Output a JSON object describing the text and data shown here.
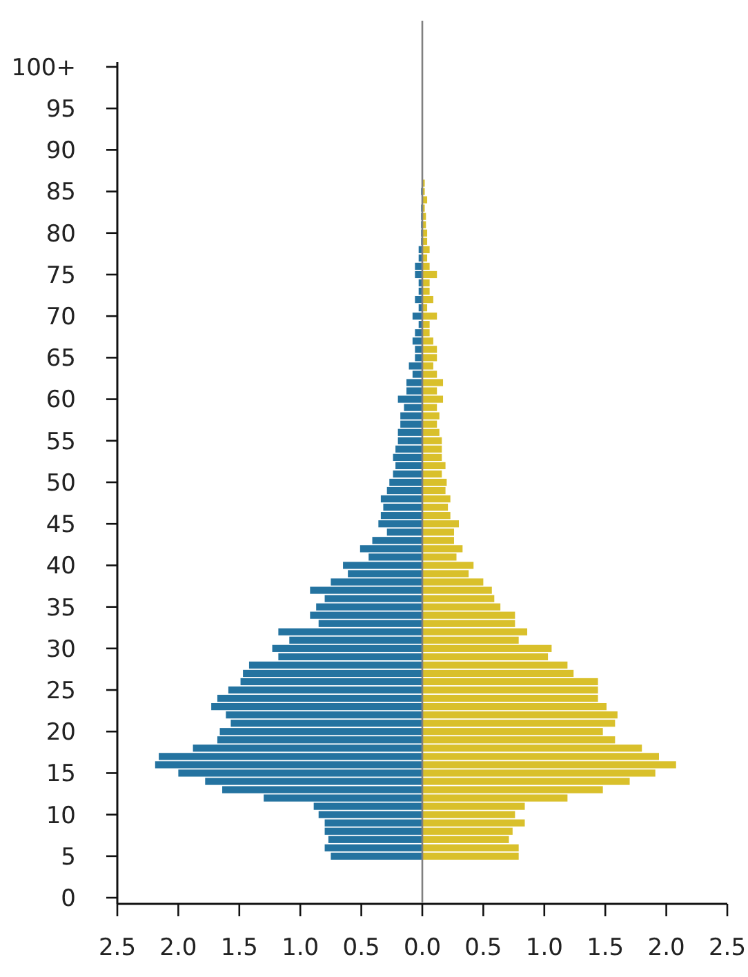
{
  "chart_data": {
    "type": "bar",
    "orientation": "horizontal",
    "categories": [
      "100+",
      null,
      null,
      null,
      null,
      "95",
      null,
      null,
      null,
      null,
      "90",
      null,
      null,
      null,
      null,
      "85",
      null,
      null,
      null,
      null,
      "80",
      null,
      null,
      null,
      null,
      "75",
      null,
      null,
      null,
      null,
      "70",
      null,
      null,
      null,
      null,
      "65",
      null,
      null,
      null,
      null,
      "60",
      null,
      null,
      null,
      null,
      "55",
      null,
      null,
      null,
      null,
      "50",
      null,
      null,
      null,
      null,
      "45",
      null,
      null,
      null,
      null,
      "40",
      null,
      null,
      null,
      null,
      "35",
      null,
      null,
      null,
      null,
      "30",
      null,
      null,
      null,
      null,
      "25",
      null,
      null,
      null,
      null,
      "20",
      null,
      null,
      null,
      null,
      "15",
      null,
      null,
      null,
      null,
      "10",
      null,
      null,
      null,
      null,
      "5",
      null,
      null,
      null,
      null,
      "0"
    ],
    "series": [
      {
        "color": "#2473a0",
        "values": [
          null,
          null,
          null,
          null,
          null,
          null,
          null,
          null,
          null,
          null,
          null,
          null,
          null,
          null,
          null,
          -0.01,
          null,
          -0.01,
          -0.01,
          -0.01,
          -0.01,
          -0.01,
          -0.03,
          -0.03,
          -0.06,
          -0.06,
          -0.03,
          -0.03,
          -0.06,
          -0.03,
          -0.08,
          -0.03,
          -0.06,
          -0.08,
          -0.06,
          -0.06,
          -0.11,
          -0.08,
          -0.13,
          -0.13,
          -0.2,
          -0.15,
          -0.18,
          -0.18,
          -0.2,
          -0.2,
          -0.22,
          -0.24,
          -0.22,
          -0.24,
          -0.27,
          -0.29,
          -0.34,
          -0.32,
          -0.34,
          -0.36,
          -0.29,
          -0.41,
          -0.51,
          -0.44,
          -0.65,
          -0.61,
          -0.75,
          -0.92,
          -0.8,
          -0.87,
          -0.92,
          -0.85,
          -1.18,
          -1.09,
          -1.23,
          -1.18,
          -1.42,
          -1.47,
          -1.49,
          -1.59,
          -1.68,
          -1.73,
          -1.61,
          -1.57,
          -1.66,
          -1.68,
          -1.88,
          -2.16,
          -2.19,
          -2.0,
          -1.78,
          -1.64,
          -1.3,
          -0.89,
          -0.85,
          -0.8,
          -0.8,
          -0.77,
          -0.8,
          -0.75,
          null,
          null,
          null,
          null,
          null
        ]
      },
      {
        "color": "#d9c02b",
        "values": [
          null,
          null,
          null,
          null,
          null,
          null,
          null,
          null,
          null,
          null,
          null,
          null,
          null,
          null,
          0.02,
          0.02,
          0.04,
          0.02,
          0.03,
          0.03,
          0.04,
          0.04,
          0.06,
          0.04,
          0.06,
          0.12,
          0.06,
          0.06,
          0.09,
          0.04,
          0.12,
          0.06,
          0.06,
          0.09,
          0.12,
          0.12,
          0.09,
          0.12,
          0.17,
          0.12,
          0.17,
          0.12,
          0.14,
          0.12,
          0.14,
          0.16,
          0.16,
          0.16,
          0.19,
          0.16,
          0.2,
          0.19,
          0.23,
          0.21,
          0.23,
          0.3,
          0.26,
          0.26,
          0.33,
          0.28,
          0.42,
          0.38,
          0.5,
          0.57,
          0.59,
          0.64,
          0.76,
          0.76,
          0.86,
          0.79,
          1.06,
          1.03,
          1.19,
          1.24,
          1.44,
          1.44,
          1.44,
          1.51,
          1.6,
          1.58,
          1.48,
          1.58,
          1.8,
          1.94,
          2.08,
          1.91,
          1.7,
          1.48,
          1.19,
          0.84,
          0.76,
          0.84,
          0.74,
          0.71,
          0.79,
          0.79,
          null,
          null,
          null,
          null,
          null
        ]
      }
    ],
    "xlim": [
      -2.5,
      2.5
    ],
    "xticks": [
      {
        "value": -2.5,
        "label": "2.5"
      },
      {
        "value": -2.0,
        "label": "2.0"
      },
      {
        "value": -1.5,
        "label": "1.5"
      },
      {
        "value": -1.0,
        "label": "1.0"
      },
      {
        "value": -0.5,
        "label": "0.5"
      },
      {
        "value": 0,
        "label": "0.0"
      },
      {
        "value": 0.5,
        "label": "0.5"
      },
      {
        "value": 1.0,
        "label": "1.0"
      },
      {
        "value": 1.5,
        "label": "1.5"
      },
      {
        "value": 2.0,
        "label": "2.0"
      },
      {
        "value": 2.5,
        "label": "2.5"
      }
    ],
    "stacked": true,
    "ref_lines": [
      {
        "axis": "x",
        "value": 0,
        "color": "#808080"
      }
    ],
    "grid": false
  }
}
